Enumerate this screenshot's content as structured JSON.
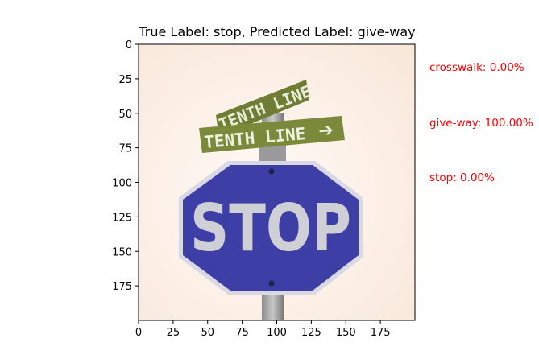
{
  "title": "True Label: stop, Predicted Label: give-way",
  "image": {
    "content": "stop-sign-photo",
    "sign_text": "STOP",
    "street_sign_text": "TENTH LINE"
  },
  "axes": {
    "x_ticks": [
      0,
      25,
      50,
      75,
      100,
      125,
      150,
      175
    ],
    "y_ticks": [
      0,
      25,
      50,
      75,
      100,
      125,
      150,
      175
    ],
    "xlim": [
      0,
      200
    ],
    "ylim": [
      200,
      0
    ]
  },
  "predictions": [
    {
      "text": "crosswalk: 0.00%"
    },
    {
      "text": "give-way: 100.00%"
    },
    {
      "text": "stop: 0.00%"
    }
  ],
  "colors": {
    "prediction_text": "#ff0000",
    "sign_blue": "#3d3fa6",
    "street_sign_green": "#7b8a3a",
    "background_sky": "#fbefe6"
  }
}
